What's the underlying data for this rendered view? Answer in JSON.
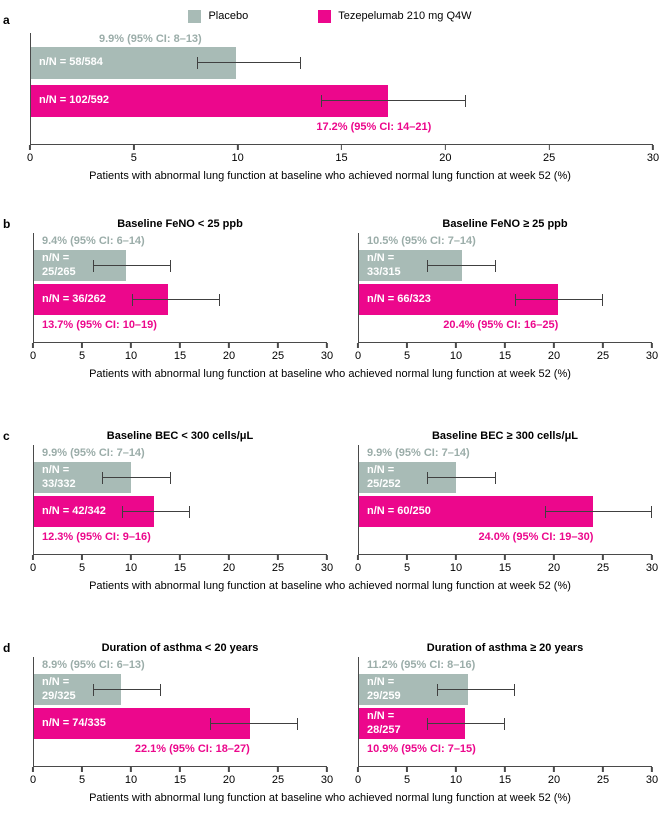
{
  "legend": {
    "items": [
      {
        "label": "Placebo",
        "color": "#A8BBB6"
      },
      {
        "label": "Tezepelumab 210 mg Q4W",
        "color": "#EC078C"
      }
    ]
  },
  "colors": {
    "placebo_bar": "#A8BBB6",
    "placebo_label_text": "#9BADA9",
    "tezepelumab": "#EC078C",
    "axis": "#4A4A4A",
    "errorbar": "#404040",
    "n_label_text": "#FFFFFF"
  },
  "axis": {
    "min": 0,
    "max": 30,
    "ticks": [
      0,
      5,
      10,
      15,
      20,
      25,
      30
    ]
  },
  "xlabel": "Patients with abnormal lung function at baseline who achieved normal lung function at week 52 (%)",
  "panels": [
    {
      "letter": "a"
    },
    {
      "letter": "b"
    },
    {
      "letter": "c"
    },
    {
      "letter": "d"
    }
  ],
  "chart_data": [
    {
      "type": "bar",
      "orientation": "horizontal",
      "panel": "a",
      "title": "",
      "xlim": [
        0,
        30
      ],
      "series": [
        {
          "name": "Placebo",
          "value": 9.9,
          "ci": [
            8,
            13
          ],
          "ci_label": "9.9% (95% CI: 8–13)",
          "n_label": "n/N = 58/584"
        },
        {
          "name": "Tezepelumab 210 mg Q4W",
          "value": 17.2,
          "ci": [
            14,
            21
          ],
          "ci_label": "17.2% (95% CI: 14–21)",
          "n_label": "n/N = 102/592"
        }
      ]
    },
    {
      "type": "bar",
      "orientation": "horizontal",
      "panel": "b",
      "title": "Baseline FeNO < 25 ppb",
      "xlim": [
        0,
        30
      ],
      "series": [
        {
          "name": "Placebo",
          "value": 9.4,
          "ci": [
            6,
            14
          ],
          "ci_label": "9.4% (95% CI: 6–14)",
          "n_label": "n/N =\n25/265"
        },
        {
          "name": "Tezepelumab 210 mg Q4W",
          "value": 13.7,
          "ci": [
            10,
            19
          ],
          "ci_label": "13.7% (95% CI: 10–19)",
          "n_label": "n/N = 36/262"
        }
      ]
    },
    {
      "type": "bar",
      "orientation": "horizontal",
      "panel": "b",
      "title": "Baseline FeNO ≥ 25 ppb",
      "xlim": [
        0,
        30
      ],
      "series": [
        {
          "name": "Placebo",
          "value": 10.5,
          "ci": [
            7,
            14
          ],
          "ci_label": "10.5% (95% CI: 7–14)",
          "n_label": "n/N =\n33/315"
        },
        {
          "name": "Tezepelumab 210 mg Q4W",
          "value": 20.4,
          "ci": [
            16,
            25
          ],
          "ci_label": "20.4% (95% CI: 16–25)",
          "n_label": "n/N = 66/323"
        }
      ]
    },
    {
      "type": "bar",
      "orientation": "horizontal",
      "panel": "c",
      "title": "Baseline BEC < 300 cells/μL",
      "xlim": [
        0,
        30
      ],
      "series": [
        {
          "name": "Placebo",
          "value": 9.9,
          "ci": [
            7,
            14
          ],
          "ci_label": "9.9% (95% CI: 7–14)",
          "n_label": "n/N =\n33/332"
        },
        {
          "name": "Tezepelumab 210 mg Q4W",
          "value": 12.3,
          "ci": [
            9,
            16
          ],
          "ci_label": "12.3% (95% CI: 9–16)",
          "n_label": "n/N = 42/342"
        }
      ]
    },
    {
      "type": "bar",
      "orientation": "horizontal",
      "panel": "c",
      "title": "Baseline BEC ≥ 300 cells/μL",
      "xlim": [
        0,
        30
      ],
      "series": [
        {
          "name": "Placebo",
          "value": 9.9,
          "ci": [
            7,
            14
          ],
          "ci_label": "9.9% (95% CI: 7–14)",
          "n_label": "n/N =\n25/252"
        },
        {
          "name": "Tezepelumab 210 mg Q4W",
          "value": 24.0,
          "ci": [
            19,
            30
          ],
          "ci_label": "24.0% (95% CI: 19–30)",
          "n_label": "n/N = 60/250"
        }
      ]
    },
    {
      "type": "bar",
      "orientation": "horizontal",
      "panel": "d",
      "title": "Duration of asthma < 20 years",
      "xlim": [
        0,
        30
      ],
      "series": [
        {
          "name": "Placebo",
          "value": 8.9,
          "ci": [
            6,
            13
          ],
          "ci_label": "8.9% (95% CI: 6–13)",
          "n_label": "n/N =\n29/325"
        },
        {
          "name": "Tezepelumab 210 mg Q4W",
          "value": 22.1,
          "ci": [
            18,
            27
          ],
          "ci_label": "22.1% (95% CI: 18–27)",
          "n_label": "n/N = 74/335"
        }
      ]
    },
    {
      "type": "bar",
      "orientation": "horizontal",
      "panel": "d",
      "title": "Duration of asthma ≥ 20 years",
      "xlim": [
        0,
        30
      ],
      "series": [
        {
          "name": "Placebo",
          "value": 11.2,
          "ci": [
            8,
            16
          ],
          "ci_label": "11.2% (95% CI: 8–16)",
          "n_label": "n/N =\n29/259"
        },
        {
          "name": "Tezepelumab 210 mg Q4W",
          "value": 10.9,
          "ci": [
            7,
            15
          ],
          "ci_label": "10.9% (95% CI: 7–15)",
          "n_label": "n/N =\n28/257"
        }
      ]
    }
  ]
}
